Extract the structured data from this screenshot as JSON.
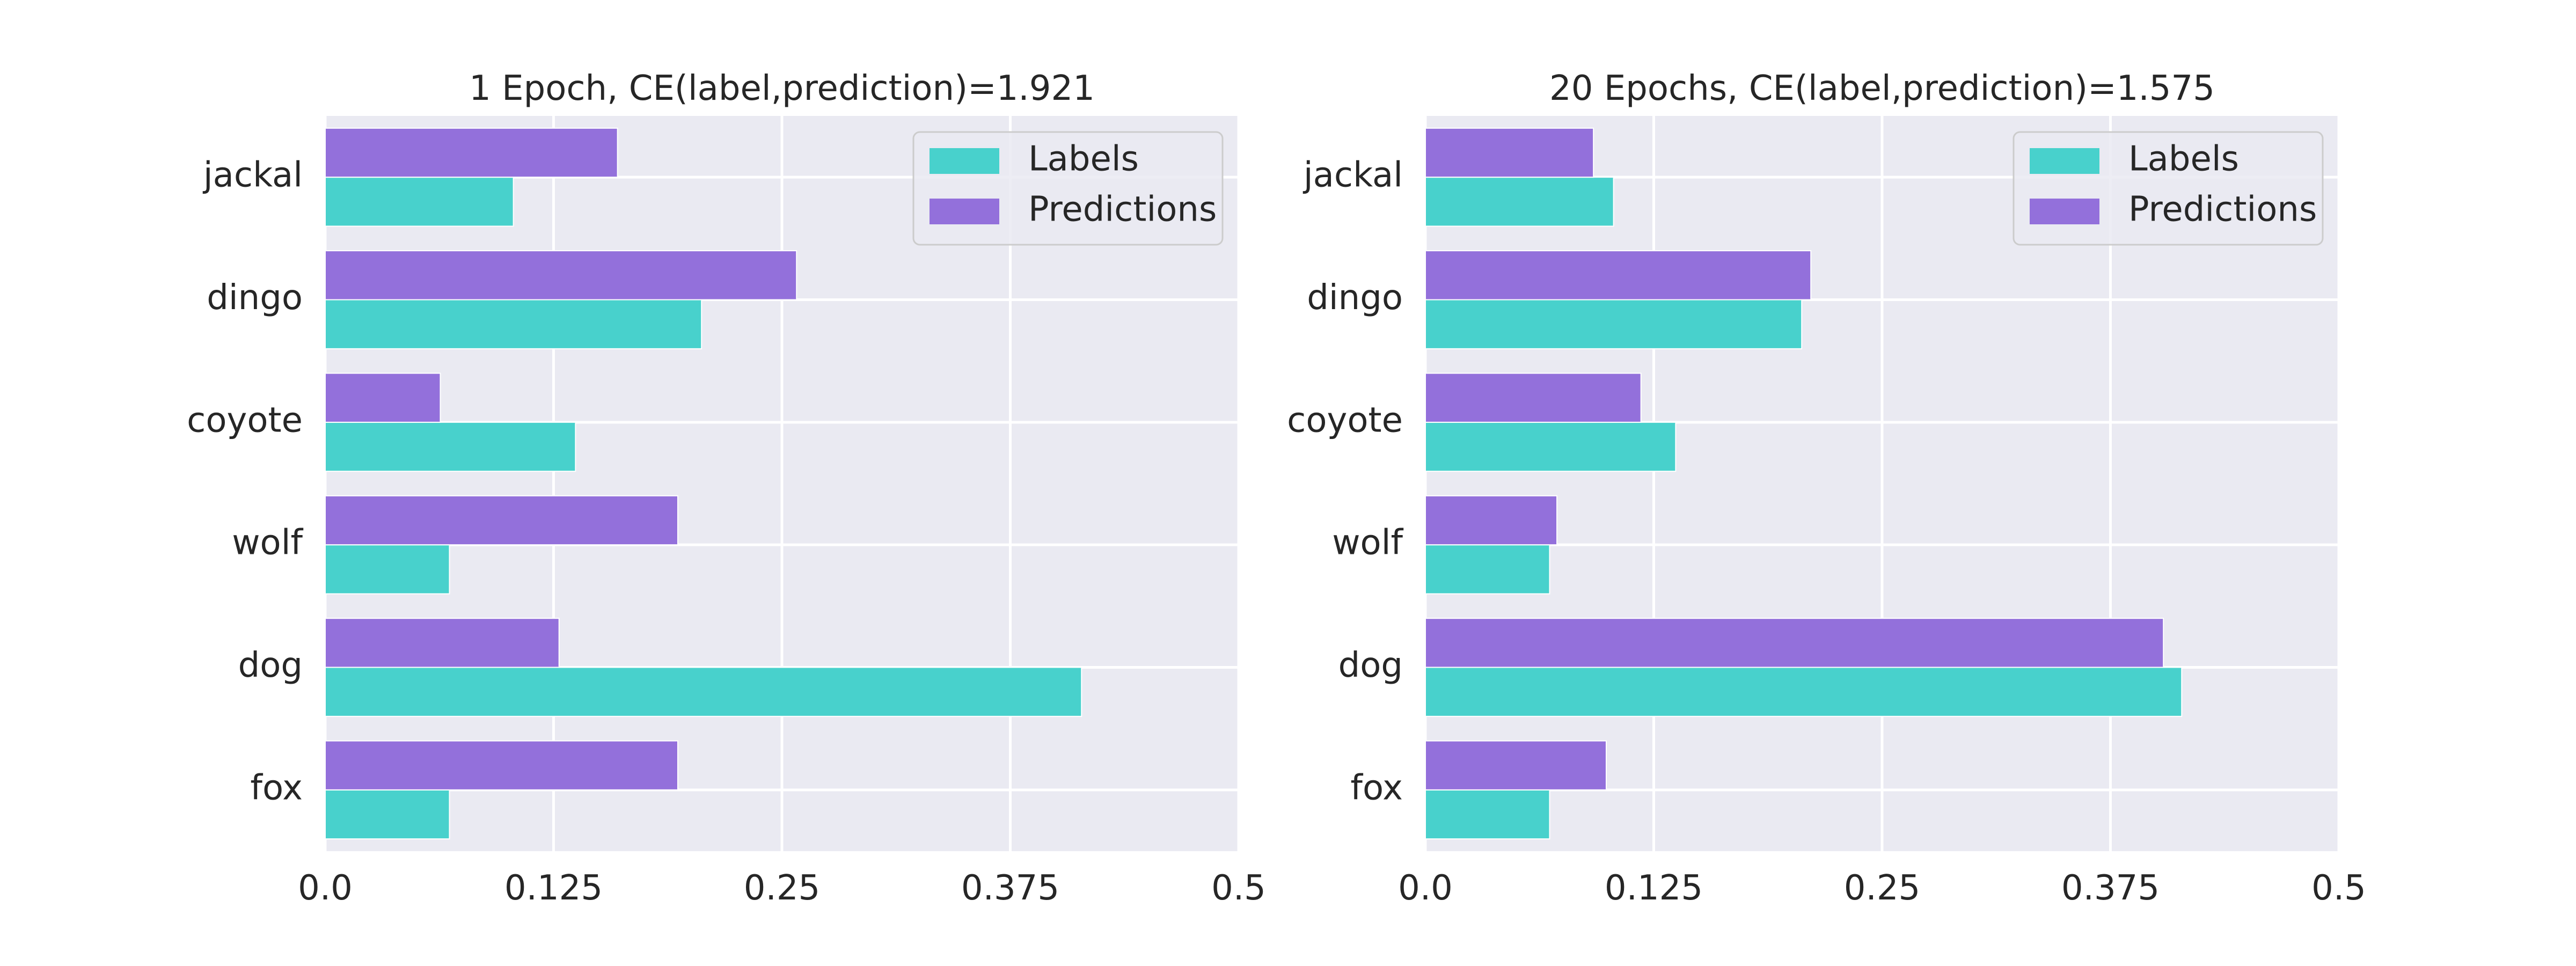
{
  "colors": {
    "labels": "#48d1cc",
    "predictions": "#9370db",
    "plot_background": "#eaeaf2",
    "grid": "#ffffff",
    "text": "#262626"
  },
  "chart_data": [
    {
      "type": "bar",
      "orientation": "horizontal",
      "title": "1 Epoch, CE(label,prediction)=1.921",
      "categories": [
        "fox",
        "dog",
        "wolf",
        "coyote",
        "dingo",
        "jackal"
      ],
      "series": [
        {
          "name": "Labels",
          "values": [
            0.068,
            0.414,
            0.068,
            0.137,
            0.206,
            0.103
          ]
        },
        {
          "name": "Predictions",
          "values": [
            0.193,
            0.128,
            0.193,
            0.063,
            0.258,
            0.16
          ]
        }
      ],
      "xticks": [
        "0.0",
        "0.125",
        "0.25",
        "0.375",
        "0.5"
      ],
      "xlim": [
        0,
        0.5
      ],
      "grid": true,
      "legend_position": "top-right"
    },
    {
      "type": "bar",
      "orientation": "horizontal",
      "title": "20 Epochs, CE(label,prediction)=1.575",
      "categories": [
        "fox",
        "dog",
        "wolf",
        "coyote",
        "dingo",
        "jackal"
      ],
      "series": [
        {
          "name": "Labels",
          "values": [
            0.068,
            0.414,
            0.068,
            0.137,
            0.206,
            0.103
          ]
        },
        {
          "name": "Predictions",
          "values": [
            0.099,
            0.404,
            0.072,
            0.118,
            0.211,
            0.092
          ]
        }
      ],
      "xticks": [
        "0.0",
        "0.125",
        "0.25",
        "0.375",
        "0.5"
      ],
      "xlim": [
        0,
        0.5
      ],
      "grid": true,
      "legend_position": "top-right"
    }
  ]
}
